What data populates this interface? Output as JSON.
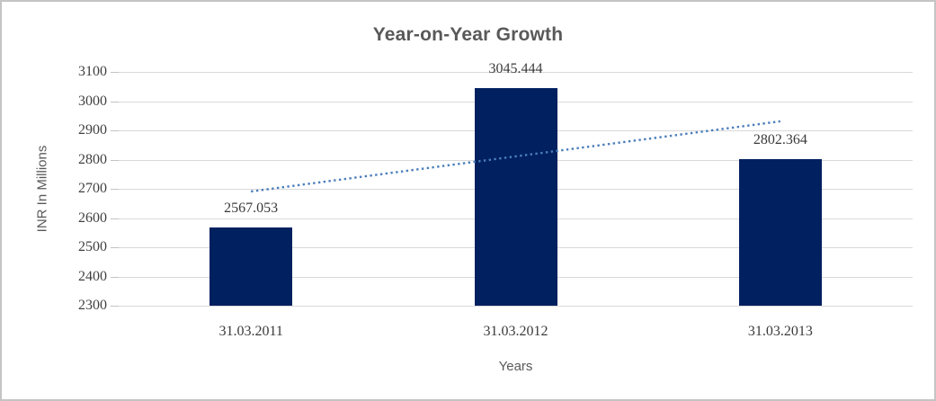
{
  "chart_data": {
    "type": "bar",
    "title": "Year-on-Year Growth",
    "categories": [
      "31.03.2011",
      "31.03.2012",
      "31.03.2013"
    ],
    "values": [
      2567.053,
      3045.444,
      2802.364
    ],
    "data_labels": [
      "2567.053",
      "3045.444",
      "2802.364"
    ],
    "xlabel": "Years",
    "ylabel": "INR In Millions",
    "ylim": [
      2300,
      3100
    ],
    "ytick_step": 100,
    "yticks": [
      "3100",
      "3000",
      "2900",
      "2800",
      "2700",
      "2600",
      "2500",
      "2400",
      "2300"
    ],
    "grid": true,
    "legend": "none",
    "colors": {
      "bar": "#002060",
      "trendline": "#4a7ebb"
    },
    "trendline": {
      "style": "dotted",
      "start_value": 2691,
      "end_value": 2931
    }
  }
}
